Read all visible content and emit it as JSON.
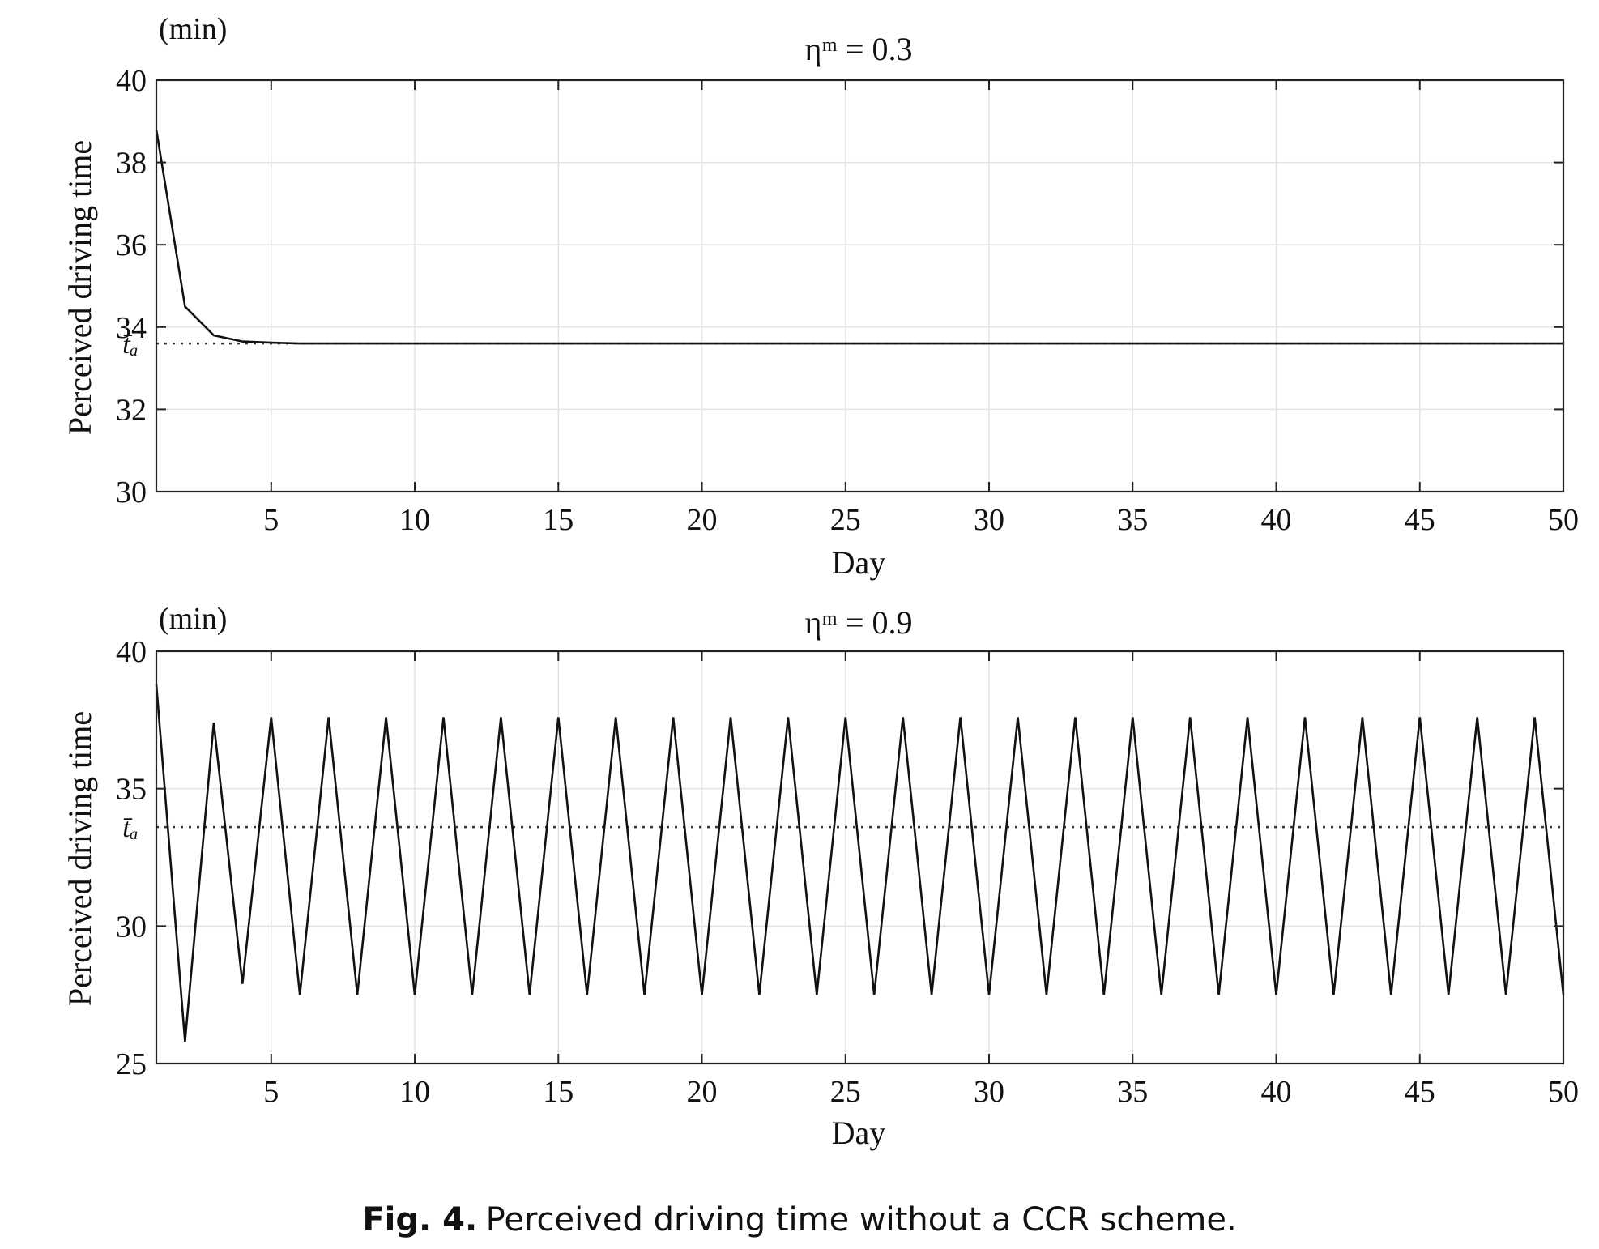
{
  "caption": {
    "label": "Fig. 4.",
    "text": "Perceived driving time without a CCR scheme."
  },
  "chart_data": [
    {
      "type": "line",
      "title": "ηᵐ = 0.3",
      "unit_label": "(min)",
      "xlabel": "Day",
      "ylabel": "Perceived driving time",
      "xlim": [
        1,
        50
      ],
      "ylim": [
        30,
        40
      ],
      "xticks": [
        5,
        10,
        15,
        20,
        25,
        30,
        35,
        40,
        45,
        50
      ],
      "yticks": [
        30,
        32,
        34,
        36,
        38,
        40
      ],
      "grid": true,
      "reference_line": {
        "label": "t̄ₐ",
        "y": 33.6,
        "style": "dotted"
      },
      "series": [
        {
          "x": [
            1,
            2,
            3,
            4,
            5,
            6,
            7,
            8,
            9,
            10,
            11,
            12,
            13,
            14,
            15,
            16,
            17,
            18,
            19,
            20,
            21,
            22,
            23,
            24,
            25,
            26,
            27,
            28,
            29,
            30,
            31,
            32,
            33,
            34,
            35,
            36,
            37,
            38,
            39,
            40,
            41,
            42,
            43,
            44,
            45,
            46,
            47,
            48,
            49,
            50
          ],
          "values": [
            38.8,
            34.5,
            33.8,
            33.65,
            33.62,
            33.6,
            33.6,
            33.6,
            33.6,
            33.6,
            33.6,
            33.6,
            33.6,
            33.6,
            33.6,
            33.6,
            33.6,
            33.6,
            33.6,
            33.6,
            33.6,
            33.6,
            33.6,
            33.6,
            33.6,
            33.6,
            33.6,
            33.6,
            33.6,
            33.6,
            33.6,
            33.6,
            33.6,
            33.6,
            33.6,
            33.6,
            33.6,
            33.6,
            33.6,
            33.6,
            33.6,
            33.6,
            33.6,
            33.6,
            33.6,
            33.6,
            33.6,
            33.6,
            33.6,
            33.6
          ]
        }
      ]
    },
    {
      "type": "line",
      "title": "ηᵐ = 0.9",
      "unit_label": "(min)",
      "xlabel": "Day",
      "ylabel": "Perceived driving time",
      "xlim": [
        1,
        50
      ],
      "ylim": [
        25,
        40
      ],
      "xticks": [
        5,
        10,
        15,
        20,
        25,
        30,
        35,
        40,
        45,
        50
      ],
      "yticks": [
        25,
        30,
        35,
        40
      ],
      "grid": true,
      "reference_line": {
        "label": "t̄ₐ",
        "y": 33.6,
        "style": "dotted"
      },
      "series": [
        {
          "x": [
            1,
            2,
            3,
            4,
            5,
            6,
            7,
            8,
            9,
            10,
            11,
            12,
            13,
            14,
            15,
            16,
            17,
            18,
            19,
            20,
            21,
            22,
            23,
            24,
            25,
            26,
            27,
            28,
            29,
            30,
            31,
            32,
            33,
            34,
            35,
            36,
            37,
            38,
            39,
            40,
            41,
            42,
            43,
            44,
            45,
            46,
            47,
            48,
            49,
            50
          ],
          "values": [
            38.8,
            25.8,
            37.4,
            27.9,
            37.6,
            27.5,
            37.6,
            27.5,
            37.6,
            27.5,
            37.6,
            27.5,
            37.6,
            27.5,
            37.6,
            27.5,
            37.6,
            27.5,
            37.6,
            27.5,
            37.6,
            27.5,
            37.6,
            27.5,
            37.6,
            27.5,
            37.6,
            27.5,
            37.6,
            27.5,
            37.6,
            27.5,
            37.6,
            27.5,
            37.6,
            27.5,
            37.6,
            27.5,
            37.6,
            27.5,
            37.6,
            27.5,
            37.6,
            27.5,
            37.6,
            27.5,
            37.6,
            27.5,
            37.6,
            27.5
          ]
        }
      ]
    }
  ]
}
